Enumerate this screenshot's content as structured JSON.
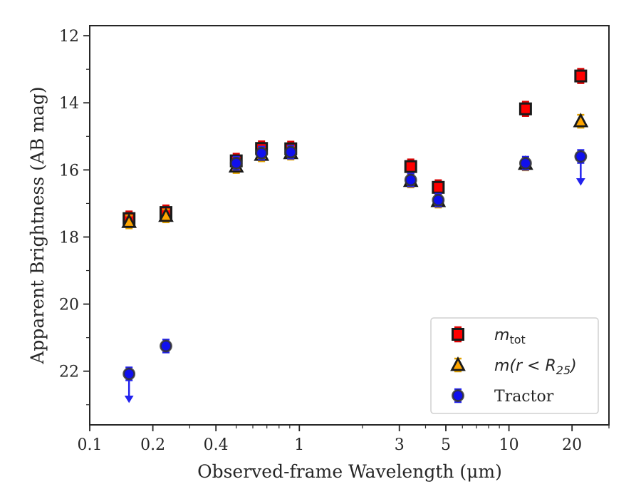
{
  "chart_data": {
    "type": "scatter",
    "title": "",
    "xlabel": "Observed-frame Wavelength (μm)",
    "ylabel": "Apparent Brightness (AB mag)",
    "xscale": "log",
    "xlim": [
      0.1,
      30
    ],
    "ylim": [
      23.6,
      11.7
    ],
    "yaxis_inverted": true,
    "x_ticks": [
      {
        "value": 0.1,
        "label": "0.1"
      },
      {
        "value": 0.2,
        "label": "0.2"
      },
      {
        "value": 0.4,
        "label": "0.4"
      },
      {
        "value": 1,
        "label": "1"
      },
      {
        "value": 3,
        "label": "3"
      },
      {
        "value": 5,
        "label": "5"
      },
      {
        "value": 10,
        "label": "10"
      },
      {
        "value": 20,
        "label": "20"
      }
    ],
    "y_ticks": [
      {
        "value": 12,
        "label": "12"
      },
      {
        "value": 14,
        "label": "14"
      },
      {
        "value": 16,
        "label": "16"
      },
      {
        "value": 18,
        "label": "18"
      },
      {
        "value": 20,
        "label": "20"
      },
      {
        "value": 22,
        "label": "22"
      }
    ],
    "legend_position": "lower-right",
    "grid": false,
    "series": [
      {
        "name": "m_tot",
        "legend_label_main": "m",
        "legend_label_sub": "tot",
        "marker": "square",
        "face_color": "#ff0000",
        "edge_color": "#1a1a1a",
        "errbar_color": "#dd0000",
        "points": [
          {
            "x": 0.154,
            "y": 17.45
          },
          {
            "x": 0.231,
            "y": 17.27
          },
          {
            "x": 0.5,
            "y": 15.73
          },
          {
            "x": 0.66,
            "y": 15.36
          },
          {
            "x": 0.91,
            "y": 15.37
          },
          {
            "x": 3.4,
            "y": 15.9
          },
          {
            "x": 4.6,
            "y": 16.52
          },
          {
            "x": 12,
            "y": 14.18
          },
          {
            "x": 22,
            "y": 13.2
          }
        ]
      },
      {
        "name": "m(r < R_25)",
        "legend_label_main": "m(r < R",
        "legend_label_sub": "25",
        "legend_label_tail": ")",
        "marker": "triangle",
        "face_color": "#ffa500",
        "edge_color": "#1a1a1a",
        "errbar_color": "#e0a000",
        "points": [
          {
            "x": 0.154,
            "y": 17.55
          },
          {
            "x": 0.231,
            "y": 17.37
          },
          {
            "x": 0.5,
            "y": 15.9
          },
          {
            "x": 0.66,
            "y": 15.55
          },
          {
            "x": 0.91,
            "y": 15.5
          },
          {
            "x": 3.4,
            "y": 16.33
          },
          {
            "x": 4.6,
            "y": 16.93
          },
          {
            "x": 12,
            "y": 15.82
          },
          {
            "x": 22,
            "y": 14.55
          }
        ]
      },
      {
        "name": "Tractor",
        "legend_label_main": "Tractor",
        "marker": "circle",
        "face_color": "#1010ee",
        "edge_color": "#333333",
        "errbar_color": "#2222ee",
        "points": [
          {
            "x": 0.154,
            "y": 22.08,
            "upper_limit": true
          },
          {
            "x": 0.231,
            "y": 21.25
          },
          {
            "x": 0.5,
            "y": 15.8
          },
          {
            "x": 0.66,
            "y": 15.5
          },
          {
            "x": 0.91,
            "y": 15.47
          },
          {
            "x": 3.4,
            "y": 16.3
          },
          {
            "x": 4.6,
            "y": 16.9
          },
          {
            "x": 12,
            "y": 15.8
          },
          {
            "x": 22,
            "y": 15.6,
            "upper_limit": true
          }
        ]
      }
    ]
  }
}
